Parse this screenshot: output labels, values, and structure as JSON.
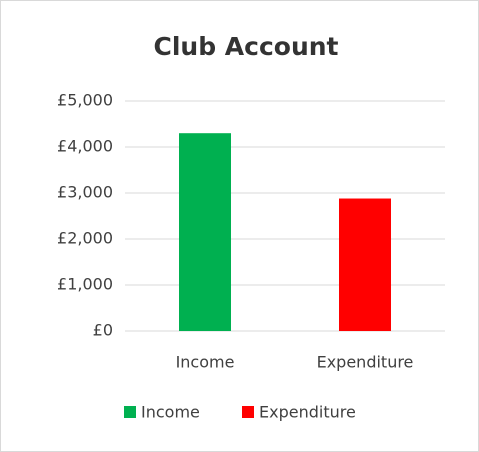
{
  "chart_data": {
    "type": "bar",
    "title": "Club Account",
    "categories": [
      "Income",
      "Expenditure"
    ],
    "values": [
      4300,
      2880
    ],
    "colors": [
      "#00b050",
      "#ff0000"
    ],
    "ylim": [
      0,
      5000
    ],
    "yticks": [
      {
        "value": 0,
        "label": "£0"
      },
      {
        "value": 1000,
        "label": "£1,000"
      },
      {
        "value": 2000,
        "label": "£2,000"
      },
      {
        "value": 3000,
        "label": "£3,000"
      },
      {
        "value": 4000,
        "label": "£4,000"
      },
      {
        "value": 5000,
        "label": "£5,000"
      }
    ],
    "grid": true,
    "legend": "bottom"
  }
}
